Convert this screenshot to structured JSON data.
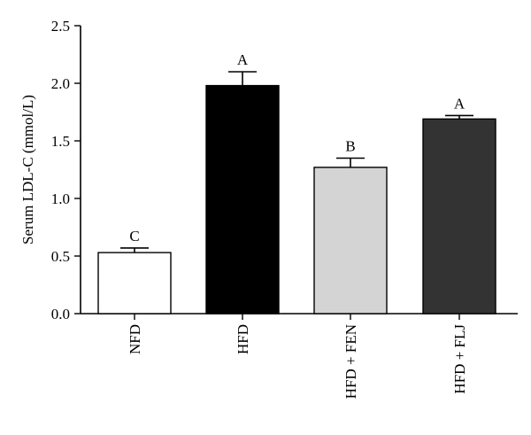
{
  "chart_data": {
    "type": "bar",
    "title": "",
    "xlabel": "",
    "ylabel": "Serum LDL-C (mmol/L)",
    "ylim": [
      0,
      2.5
    ],
    "yticks": [
      "0.0",
      "0.5",
      "1.0",
      "1.5",
      "2.0",
      "2.5"
    ],
    "ytick_values": [
      0,
      0.5,
      1.0,
      1.5,
      2.0,
      2.5
    ],
    "grid": false,
    "categories": [
      "NFD",
      "HFD",
      "HFD + FEN",
      "HFD + FLJ"
    ],
    "values": [
      0.53,
      1.98,
      1.27,
      1.69
    ],
    "errors": [
      0.04,
      0.12,
      0.08,
      0.03
    ],
    "significance_labels": [
      "C",
      "A",
      "B",
      "A"
    ],
    "colors": [
      "#ffffff",
      "#000000",
      "#d4d4d4",
      "#333333"
    ]
  }
}
